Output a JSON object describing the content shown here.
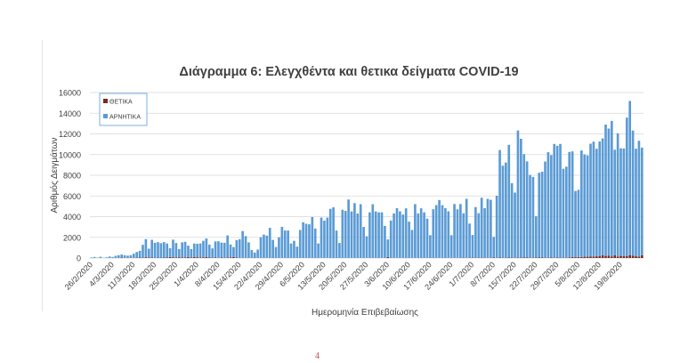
{
  "chart_data": {
    "type": "bar",
    "stacked": true,
    "title": "Διάγραμμα 6: Ελεγχθέντα και θετικα δείγματα COVID-19",
    "xlabel": "Ημερομηνία Επιβεβαίωσης",
    "ylabel": "Αριθμός Δειγμάτων",
    "ylim": [
      0,
      16000
    ],
    "yticks": [
      0,
      2000,
      4000,
      6000,
      8000,
      10000,
      12000,
      14000,
      16000
    ],
    "grid": true,
    "legend_position": "top-left",
    "x_tick_labels": [
      "26/2/2020",
      "4/3/2020",
      "11/3/2020",
      "18/3/2020",
      "25/3/2020",
      "1/4/2020",
      "8/4/2020",
      "15/4/2020",
      "22/4/2020",
      "29/4/2020",
      "6/5/2020",
      "13/5/2020",
      "20/5/2020",
      "27/5/2020",
      "3/6/2020",
      "10/6/2020",
      "17/6/2020",
      "24/6/2020",
      "1/7/2020",
      "8/7/2020",
      "15/7/2020",
      "22/7/2020",
      "29/7/2020",
      "5/8/2020",
      "12/8/2020",
      "19/8/2020"
    ],
    "x_tick_every_days": 7,
    "series": [
      {
        "name": "ΘΕΤΙΚΑ",
        "color": "#7b2b22",
        "values": [
          1,
          0,
          0,
          0,
          0,
          7,
          0,
          2,
          12,
          21,
          36,
          15,
          24,
          24,
          18,
          31,
          46,
          30,
          75,
          52,
          56,
          22,
          33,
          35,
          41,
          54,
          94,
          71,
          52,
          71,
          61,
          66,
          94,
          64,
          102,
          74,
          58,
          59,
          92,
          46,
          30,
          53,
          19,
          41,
          26,
          36,
          58,
          106,
          37,
          20,
          4,
          21,
          11,
          17,
          29,
          14,
          16,
          16,
          12,
          15,
          3,
          13,
          4,
          12,
          10,
          10,
          6,
          11,
          4,
          11,
          7,
          10,
          10,
          10,
          4,
          5,
          8,
          11,
          8,
          3,
          0,
          3,
          3,
          13,
          4,
          5,
          3,
          9,
          2,
          2,
          3,
          6,
          15,
          1,
          5,
          10,
          16,
          4,
          97,
          20,
          11,
          12,
          12,
          2,
          3,
          17,
          12,
          8,
          7,
          6,
          14,
          7,
          7,
          17,
          16,
          6,
          10,
          20,
          15,
          9,
          18,
          11,
          20,
          26,
          19,
          29,
          31,
          25,
          31,
          29,
          20,
          19,
          24,
          44,
          23,
          41,
          27,
          30,
          40,
          35,
          25,
          36,
          31,
          43,
          42,
          28,
          34,
          36,
          43,
          43,
          26,
          30,
          49,
          28,
          51,
          28,
          31,
          31,
          57,
          110,
          78,
          92,
          98,
          121,
          125,
          152,
          151,
          163,
          169,
          262,
          203,
          217,
          154,
          269,
          150,
          205,
          196,
          169,
          284,
          230,
          168,
          138,
          274
        ]
      },
      {
        "name": "ΑΡΝΗΤΙΚΑ",
        "color": "#5b9bd5",
        "values": [
          50,
          100,
          30,
          120,
          20,
          60,
          150,
          100,
          200,
          250,
          300,
          250,
          200,
          250,
          400,
          550,
          650,
          1250,
          1750,
          850,
          1700,
          1450,
          1500,
          1400,
          1500,
          1350,
          850,
          1700,
          1400,
          800,
          1450,
          1500,
          1100,
          800,
          1300,
          1300,
          1350,
          1600,
          1800,
          1250,
          900,
          1550,
          1600,
          1450,
          1450,
          2150,
          1250,
          950,
          1700,
          1800,
          2600,
          2100,
          1500,
          750,
          500,
          800,
          2000,
          2250,
          2150,
          2900,
          1750,
          1050,
          2000,
          3000,
          2650,
          2650,
          1400,
          1650,
          1100,
          2700,
          3450,
          3300,
          3250,
          3950,
          2850,
          1400,
          3900,
          3600,
          3900,
          4750,
          4900,
          2650,
          1450,
          4650,
          4550,
          5650,
          4500,
          5300,
          4300,
          5200,
          3000,
          2100,
          4400,
          5200,
          4500,
          4400,
          4400,
          3100,
          1700,
          3600,
          4300,
          4800,
          4500,
          4200,
          4800,
          3500,
          2700,
          5200,
          4300,
          4800,
          4400,
          3800,
          2200,
          4700,
          5100,
          5600,
          5100,
          4800,
          4500,
          2200,
          5200,
          4700,
          5200,
          4300,
          5700,
          3300,
          2200,
          4900,
          4300,
          5800,
          4800,
          5700,
          5600,
          2000,
          6000,
          10400,
          8900,
          9200,
          10900,
          7200,
          6300,
          12300,
          11500,
          10000,
          9300,
          8000,
          7800,
          4000,
          8200,
          8300,
          9300,
          10200,
          9900,
          11000,
          10800,
          11000,
          8600,
          8800,
          10200,
          10200,
          6400,
          6500,
          10300,
          9900,
          9800,
          10900,
          11100,
          10400,
          11100,
          11300,
          12700,
          12300,
          13100,
          10200,
          11900,
          10400,
          10400,
          13400,
          14900,
          12100,
          10400,
          11200,
          10400
        ]
      }
    ]
  },
  "page": {
    "number": "4"
  }
}
